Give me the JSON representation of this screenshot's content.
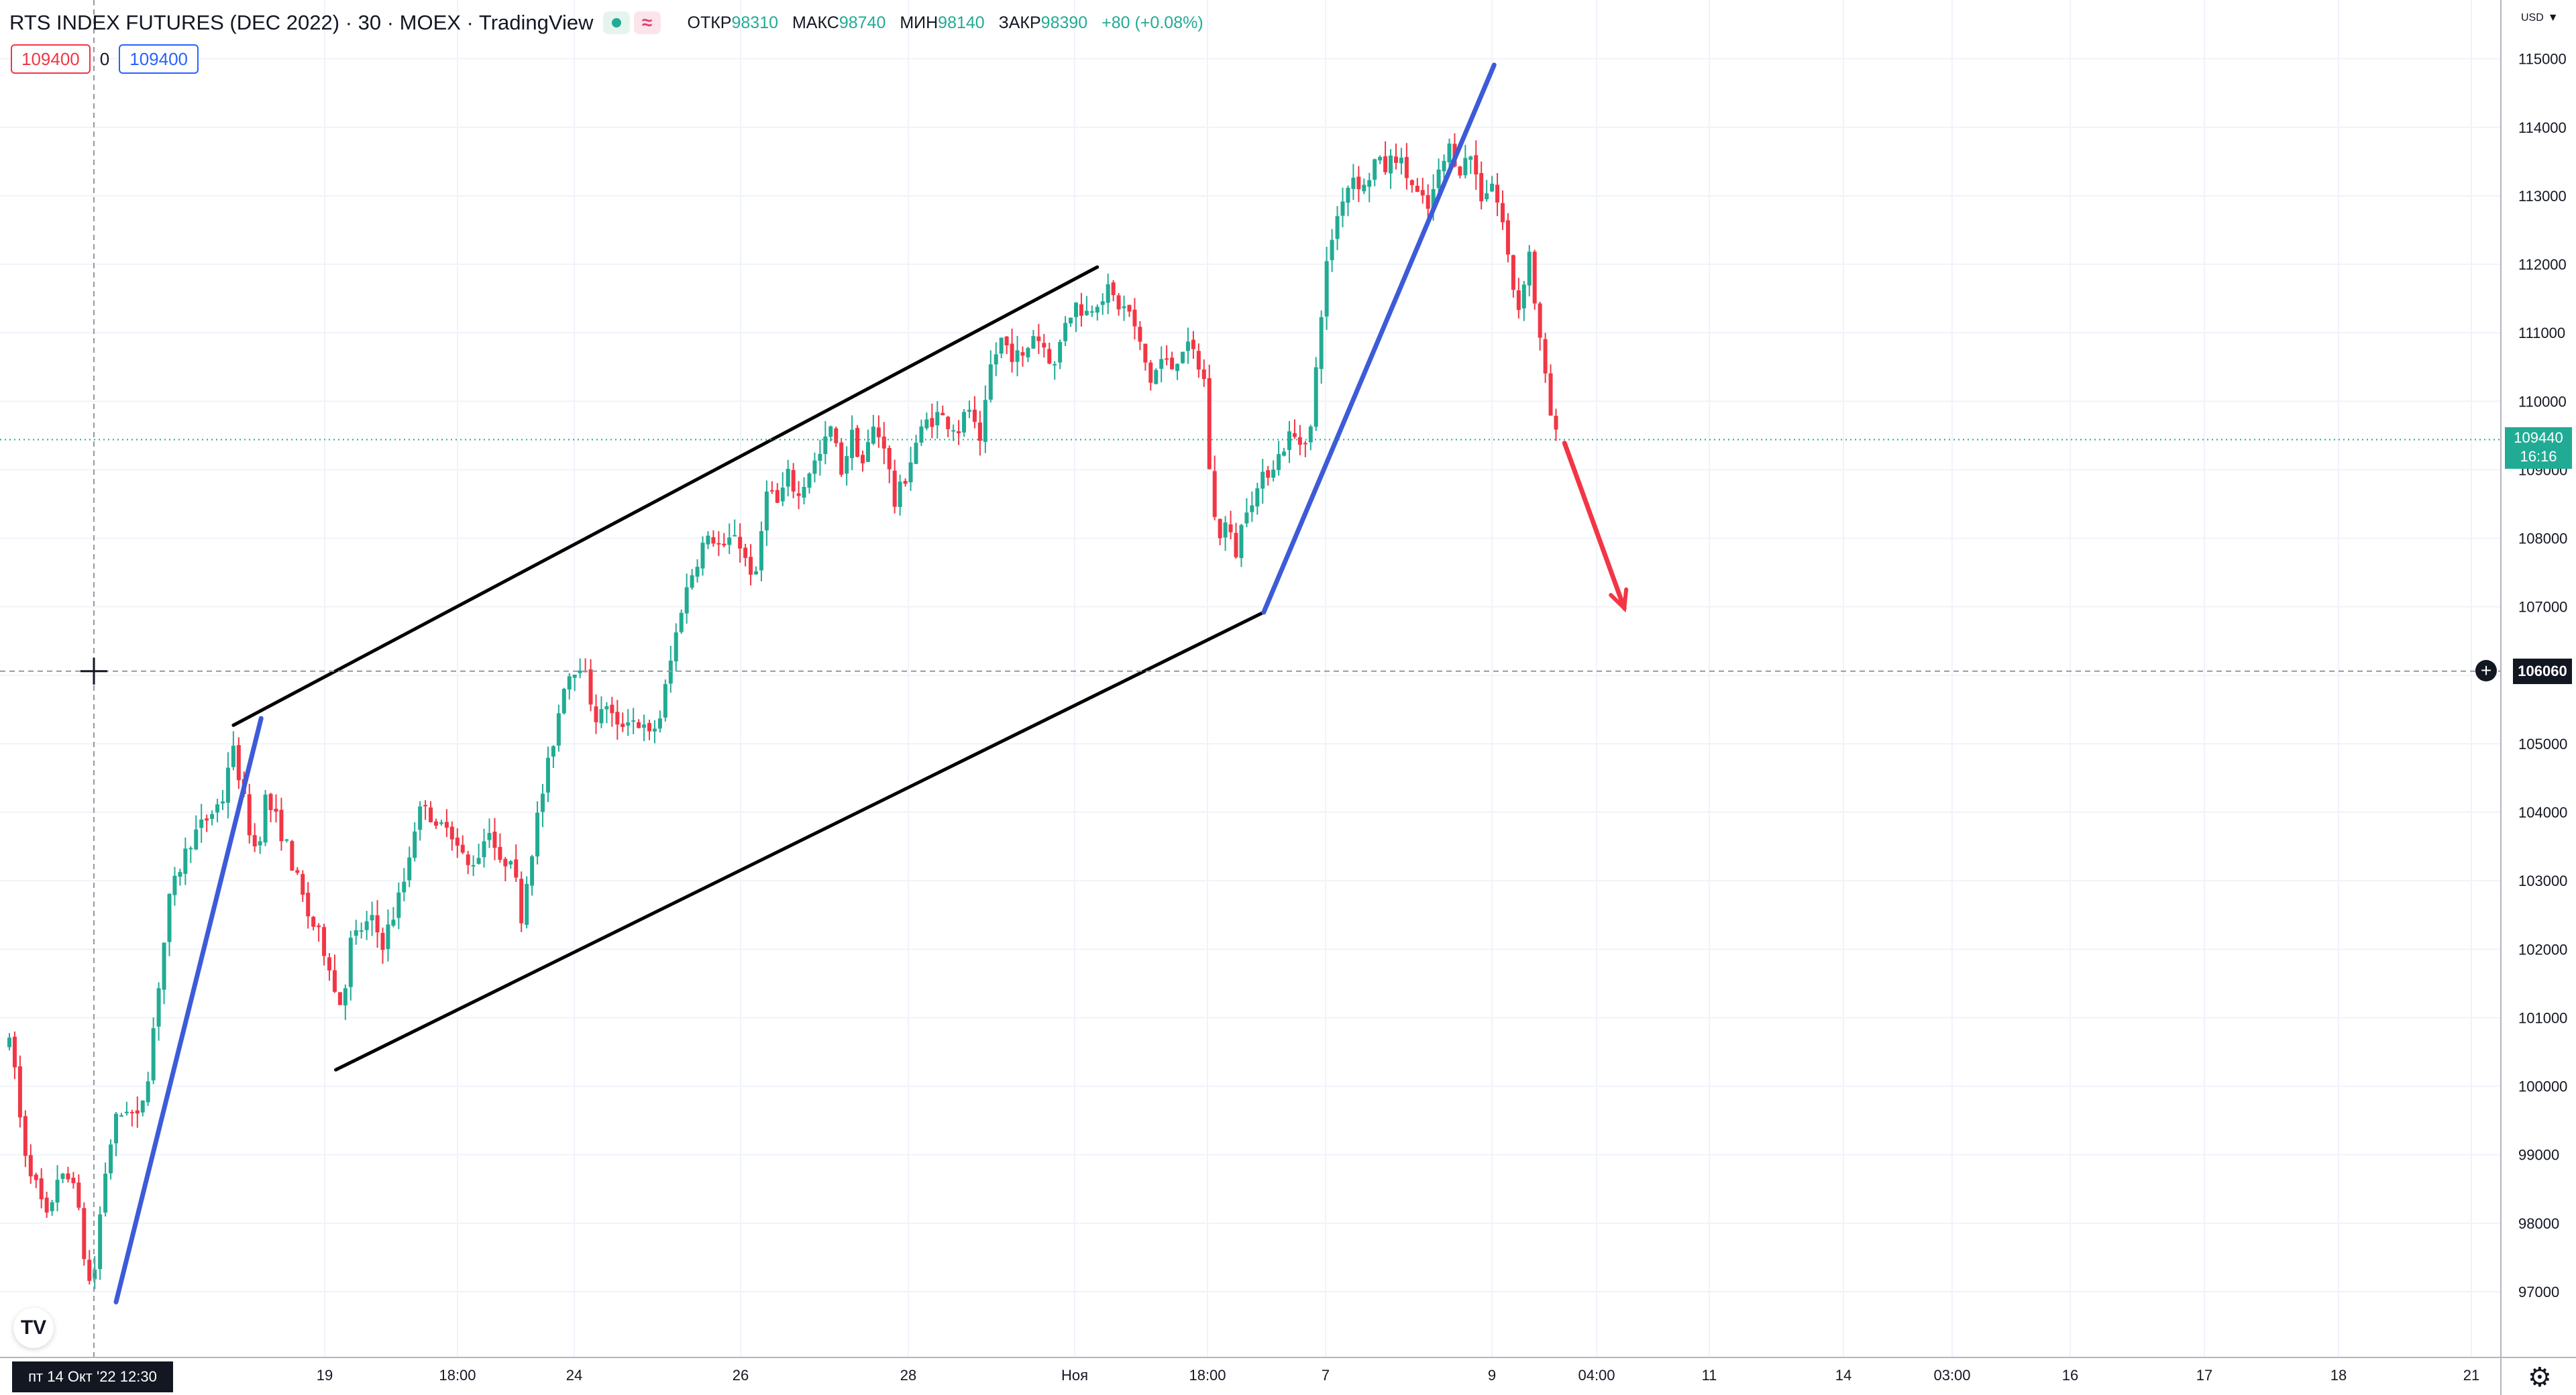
{
  "header": {
    "title": "RTS INDEX FUTURES (DEC 2022) · 30 · MOEX · TradingView",
    "ohlc": [
      {
        "label": "ОТКР",
        "value": "98310"
      },
      {
        "label": "МАКС",
        "value": "98740"
      },
      {
        "label": "МИН",
        "value": "98140"
      },
      {
        "label": "ЗАКР",
        "value": "98390"
      }
    ],
    "change": "+80 (+0.08%)",
    "indicator": {
      "left": "109400",
      "mid": "0",
      "right": "109400"
    },
    "currency": "USD"
  },
  "badges": {
    "date": "пт 14 Окт '22   12:30",
    "last_price": "109440",
    "countdown": "16:16",
    "crosshair_price": "106060"
  },
  "colors": {
    "up": "#22ab94",
    "down": "#f23645",
    "channel": "#000000",
    "trend": "#3d5bd8",
    "arrow": "#f23645"
  },
  "chart_data": {
    "type": "candlestick",
    "instrument": "RTS INDEX FUTURES (DEC 2022)",
    "interval": "30",
    "ylim": [
      96600,
      115600
    ],
    "y_ticks": [
      97000,
      98000,
      99000,
      100000,
      101000,
      102000,
      103000,
      104000,
      105000,
      106000,
      107000,
      108000,
      109000,
      110000,
      111000,
      112000,
      113000,
      114000,
      115000
    ],
    "x_tick_labels": [
      "19",
      "18:00",
      "24",
      "26",
      "28",
      "Ноя",
      "18:00",
      "7",
      "9",
      "04:00",
      "11",
      "14",
      "03:00",
      "16",
      "17",
      "18",
      "21"
    ],
    "last_price": 109440,
    "crosshair_price": 106060,
    "price_path": [
      [
        0.0,
        100600
      ],
      [
        0.3,
        100200
      ],
      [
        0.6,
        99200
      ],
      [
        1.0,
        98800
      ],
      [
        1.4,
        98400
      ],
      [
        1.8,
        98000
      ],
      [
        2.2,
        98700
      ],
      [
        2.6,
        98600
      ],
      [
        3.0,
        98700
      ],
      [
        3.3,
        98000
      ],
      [
        3.6,
        97300
      ],
      [
        3.9,
        97000
      ],
      [
        4.2,
        98000
      ],
      [
        4.6,
        99000
      ],
      [
        5.0,
        99500
      ],
      [
        5.5,
        99700
      ],
      [
        6.0,
        99500
      ],
      [
        6.5,
        100200
      ],
      [
        7.0,
        101500
      ],
      [
        7.5,
        102700
      ],
      [
        8.0,
        103200
      ],
      [
        8.5,
        103600
      ],
      [
        9.0,
        103800
      ],
      [
        9.5,
        104000
      ],
      [
        10.0,
        104200
      ],
      [
        10.4,
        105000
      ],
      [
        10.8,
        104500
      ],
      [
        11.2,
        103800
      ],
      [
        11.6,
        103400
      ],
      [
        12.0,
        104200
      ],
      [
        12.5,
        103900
      ],
      [
        13.0,
        103500
      ],
      [
        13.5,
        103000
      ],
      [
        14.0,
        102500
      ],
      [
        14.5,
        102200
      ],
      [
        15.0,
        101800
      ],
      [
        15.3,
        101300
      ],
      [
        15.6,
        101200
      ],
      [
        16.0,
        102100
      ],
      [
        16.5,
        102300
      ],
      [
        17.0,
        102400
      ],
      [
        17.5,
        102100
      ],
      [
        18.0,
        102500
      ],
      [
        18.5,
        103000
      ],
      [
        19.0,
        103800
      ],
      [
        19.5,
        104200
      ],
      [
        20.0,
        103700
      ],
      [
        20.5,
        103900
      ],
      [
        21.0,
        103500
      ],
      [
        21.5,
        103200
      ],
      [
        22.0,
        103400
      ],
      [
        22.5,
        103800
      ],
      [
        23.0,
        103200
      ],
      [
        23.5,
        103400
      ],
      [
        24.0,
        102500
      ],
      [
        24.4,
        103300
      ],
      [
        24.8,
        104000
      ],
      [
        25.2,
        104600
      ],
      [
        25.6,
        105200
      ],
      [
        26.0,
        105900
      ],
      [
        26.4,
        106100
      ],
      [
        26.8,
        106200
      ],
      [
        27.2,
        105700
      ],
      [
        27.6,
        105300
      ],
      [
        28.0,
        105600
      ],
      [
        28.5,
        105200
      ],
      [
        29.0,
        105400
      ],
      [
        29.5,
        105300
      ],
      [
        30.0,
        105100
      ],
      [
        30.5,
        105400
      ],
      [
        31.0,
        106200
      ],
      [
        31.5,
        107000
      ],
      [
        32.0,
        107500
      ],
      [
        32.5,
        107900
      ],
      [
        33.0,
        108000
      ],
      [
        33.5,
        107800
      ],
      [
        34.0,
        108100
      ],
      [
        34.5,
        107700
      ],
      [
        35.0,
        107400
      ],
      [
        35.5,
        108800
      ],
      [
        36.0,
        108500
      ],
      [
        36.5,
        108900
      ],
      [
        37.0,
        108600
      ],
      [
        37.5,
        109000
      ],
      [
        38.0,
        109200
      ],
      [
        38.5,
        109600
      ],
      [
        39.0,
        109000
      ],
      [
        39.5,
        109500
      ],
      [
        40.0,
        109100
      ],
      [
        40.5,
        109600
      ],
      [
        41.0,
        109400
      ],
      [
        41.5,
        108500
      ],
      [
        42.0,
        108900
      ],
      [
        42.5,
        109400
      ],
      [
        43.0,
        109700
      ],
      [
        43.5,
        109800
      ],
      [
        44.0,
        109700
      ],
      [
        44.5,
        109600
      ],
      [
        45.0,
        109900
      ],
      [
        45.5,
        109300
      ],
      [
        46.0,
        110500
      ],
      [
        46.5,
        110900
      ],
      [
        47.0,
        110700
      ],
      [
        47.5,
        110600
      ],
      [
        48.0,
        111000
      ],
      [
        48.5,
        110800
      ],
      [
        49.0,
        110500
      ],
      [
        49.5,
        111200
      ],
      [
        50.0,
        111400
      ],
      [
        50.5,
        111300
      ],
      [
        51.0,
        111500
      ],
      [
        51.5,
        111600
      ],
      [
        52.0,
        111400
      ],
      [
        52.5,
        111300
      ],
      [
        53.0,
        110800
      ],
      [
        53.5,
        110300
      ],
      [
        54.0,
        110600
      ],
      [
        54.5,
        110500
      ],
      [
        55.0,
        110800
      ],
      [
        55.5,
        110700
      ],
      [
        56.0,
        110300
      ],
      [
        56.3,
        108800
      ],
      [
        56.6,
        108000
      ],
      [
        57.0,
        108200
      ],
      [
        57.5,
        107800
      ],
      [
        58.0,
        108500
      ],
      [
        58.5,
        108700
      ],
      [
        59.0,
        109000
      ],
      [
        59.5,
        109200
      ],
      [
        60.0,
        109500
      ],
      [
        60.5,
        109400
      ],
      [
        61.0,
        109600
      ],
      [
        61.3,
        110600
      ],
      [
        61.6,
        111700
      ],
      [
        62.0,
        112400
      ],
      [
        62.5,
        113000
      ],
      [
        63.0,
        113300
      ],
      [
        63.5,
        113100
      ],
      [
        64.0,
        113500
      ],
      [
        64.5,
        113400
      ],
      [
        65.0,
        113600
      ],
      [
        65.5,
        113300
      ],
      [
        66.0,
        113000
      ],
      [
        66.5,
        112800
      ],
      [
        67.0,
        113300
      ],
      [
        67.5,
        113700
      ],
      [
        68.0,
        113400
      ],
      [
        68.5,
        113600
      ],
      [
        69.0,
        113000
      ],
      [
        69.5,
        113200
      ],
      [
        70.0,
        112600
      ],
      [
        70.4,
        111800
      ],
      [
        70.8,
        111300
      ],
      [
        71.2,
        112300
      ],
      [
        71.6,
        111200
      ],
      [
        72.0,
        110300
      ],
      [
        72.4,
        109500
      ],
      [
        72.7,
        109440
      ]
    ],
    "drawings": [
      {
        "kind": "channel-line",
        "from": [
          10.5,
          105270
        ],
        "to": [
          51.0,
          111960
        ]
      },
      {
        "kind": "channel-line",
        "from": [
          15.3,
          100240
        ],
        "to": [
          58.8,
          106920
        ]
      },
      {
        "kind": "trend-line",
        "from": [
          5.0,
          96850
        ],
        "to": [
          11.8,
          105370
        ]
      },
      {
        "kind": "trend-line",
        "from": [
          58.8,
          106920
        ],
        "to": [
          69.6,
          114910
        ]
      },
      {
        "kind": "arrow",
        "from": [
          72.9,
          109390
        ],
        "to": [
          75.7,
          106980
        ]
      }
    ]
  }
}
